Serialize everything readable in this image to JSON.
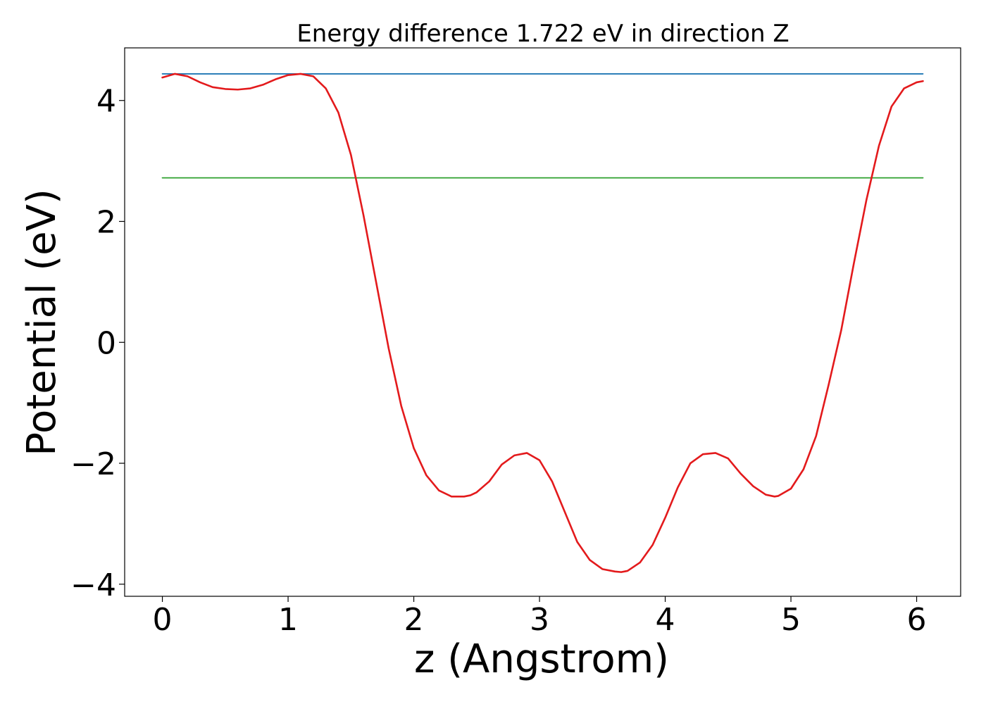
{
  "chart_data": {
    "type": "line",
    "title": "Energy difference 1.722 eV in direction Z",
    "xlabel": "z (Angstrom)",
    "ylabel": "Potential (eV)",
    "xlim": [
      -0.3,
      6.35
    ],
    "ylim": [
      -4.2,
      4.87
    ],
    "xticks": [
      0,
      1,
      2,
      3,
      4,
      5,
      6
    ],
    "xtick_labels": [
      "0",
      "1",
      "2",
      "3",
      "4",
      "5",
      "6"
    ],
    "yticks": [
      -4,
      -2,
      0,
      2,
      4
    ],
    "ytick_labels": [
      "−4",
      "−2",
      "0",
      "2",
      "4"
    ],
    "grid": false,
    "series": [
      {
        "color": "#1f77b4",
        "x": [
          0,
          6.05
        ],
        "y": [
          4.44,
          4.44
        ]
      },
      {
        "color": "#2ca02c",
        "x": [
          0,
          6.05
        ],
        "y": [
          2.72,
          2.72
        ]
      },
      {
        "color": "#e31a1c",
        "x": [
          0,
          0.1,
          0.2,
          0.3,
          0.4,
          0.5,
          0.6,
          0.7,
          0.8,
          0.9,
          1.0,
          1.1,
          1.2,
          1.3,
          1.4,
          1.5,
          1.6,
          1.7,
          1.8,
          1.9,
          2.0,
          2.1,
          2.2,
          2.3,
          2.4,
          2.45,
          2.5,
          2.6,
          2.7,
          2.8,
          2.9,
          3.0,
          3.1,
          3.2,
          3.3,
          3.4,
          3.5,
          3.6,
          3.65,
          3.7,
          3.8,
          3.9,
          4.0,
          4.1,
          4.2,
          4.3,
          4.4,
          4.5,
          4.6,
          4.7,
          4.8,
          4.87,
          4.9,
          5.0,
          5.1,
          5.2,
          5.3,
          5.4,
          5.5,
          5.6,
          5.7,
          5.8,
          5.9,
          6.0,
          6.05
        ],
        "y": [
          4.38,
          4.44,
          4.4,
          4.3,
          4.22,
          4.19,
          4.18,
          4.2,
          4.26,
          4.35,
          4.42,
          4.44,
          4.4,
          4.2,
          3.8,
          3.1,
          2.1,
          1.0,
          -0.1,
          -1.05,
          -1.75,
          -2.2,
          -2.45,
          -2.55,
          -2.55,
          -2.53,
          -2.48,
          -2.3,
          -2.02,
          -1.87,
          -1.83,
          -1.95,
          -2.3,
          -2.8,
          -3.3,
          -3.6,
          -3.75,
          -3.79,
          -3.8,
          -3.78,
          -3.64,
          -3.35,
          -2.9,
          -2.4,
          -2.0,
          -1.85,
          -1.83,
          -1.92,
          -2.17,
          -2.38,
          -2.52,
          -2.55,
          -2.54,
          -2.42,
          -2.1,
          -1.55,
          -0.7,
          0.2,
          1.3,
          2.35,
          3.25,
          3.9,
          4.2,
          4.3,
          4.32
        ]
      }
    ]
  }
}
